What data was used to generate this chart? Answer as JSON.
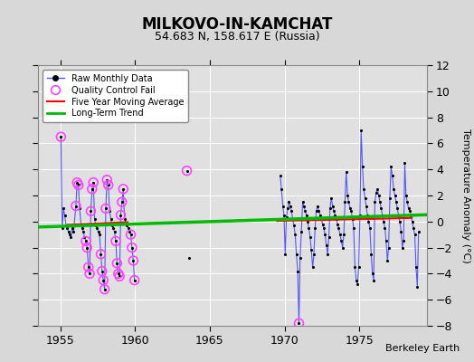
{
  "title": "MILKOVO-IN-KAMCHAT",
  "subtitle": "54.683 N, 158.617 E (Russia)",
  "ylabel": "Temperature Anomaly (°C)",
  "xlabel_credit": "Berkeley Earth",
  "xlim": [
    1953.5,
    1979.5
  ],
  "ylim": [
    -8,
    12
  ],
  "yticks": [
    -8,
    -6,
    -4,
    -2,
    0,
    2,
    4,
    6,
    8,
    10,
    12
  ],
  "xticks": [
    1955,
    1960,
    1965,
    1970,
    1975
  ],
  "bg_color": "#e0e0e0",
  "raw_color": "#5555ff",
  "dot_color": "#000000",
  "qc_color": "#ff44ff",
  "moving_avg_color": "#ff0000",
  "trend_color": "#00bb00",
  "segments": [
    [
      [
        1955.04,
        6.5
      ],
      [
        1955.12,
        -0.5
      ],
      [
        1955.21,
        1.0
      ],
      [
        1955.29,
        0.5
      ],
      [
        1955.38,
        -0.3
      ],
      [
        1955.46,
        -0.5
      ],
      [
        1955.54,
        -0.8
      ],
      [
        1955.62,
        -1.0
      ],
      [
        1955.71,
        -1.2
      ],
      [
        1955.79,
        -0.5
      ],
      [
        1955.88,
        -0.8
      ],
      [
        1956.04,
        1.2
      ],
      [
        1956.12,
        3.0
      ],
      [
        1956.21,
        2.8
      ],
      [
        1956.29,
        1.0
      ],
      [
        1956.38,
        -0.2
      ],
      [
        1956.46,
        -0.5
      ],
      [
        1956.54,
        -0.8
      ],
      [
        1956.62,
        -1.2
      ],
      [
        1956.71,
        -1.5
      ],
      [
        1956.79,
        -2.0
      ],
      [
        1956.88,
        -3.5
      ],
      [
        1956.96,
        -4.0
      ],
      [
        1957.04,
        0.8
      ],
      [
        1957.12,
        2.5
      ],
      [
        1957.21,
        3.0
      ],
      [
        1957.29,
        0.2
      ],
      [
        1957.38,
        -0.3
      ],
      [
        1957.46,
        -0.5
      ],
      [
        1957.54,
        -0.8
      ],
      [
        1957.62,
        -1.0
      ],
      [
        1957.71,
        -2.5
      ],
      [
        1957.79,
        -3.8
      ],
      [
        1957.88,
        -4.5
      ],
      [
        1957.96,
        -5.2
      ],
      [
        1958.04,
        1.0
      ],
      [
        1958.12,
        3.2
      ],
      [
        1958.21,
        2.8
      ],
      [
        1958.29,
        0.8
      ],
      [
        1958.38,
        0.2
      ],
      [
        1958.46,
        -0.3
      ],
      [
        1958.54,
        -0.5
      ],
      [
        1958.62,
        -0.8
      ],
      [
        1958.71,
        -1.5
      ],
      [
        1958.79,
        -3.2
      ],
      [
        1958.88,
        -4.0
      ],
      [
        1958.96,
        -4.2
      ],
      [
        1959.04,
        0.5
      ],
      [
        1959.12,
        1.5
      ],
      [
        1959.21,
        2.5
      ],
      [
        1959.29,
        0.2
      ],
      [
        1959.38,
        -0.1
      ],
      [
        1959.46,
        -0.3
      ],
      [
        1959.54,
        -0.5
      ],
      [
        1959.62,
        -0.8
      ],
      [
        1959.71,
        -1.0
      ],
      [
        1959.79,
        -2.0
      ],
      [
        1959.88,
        -3.0
      ],
      [
        1959.96,
        -4.5
      ]
    ],
    [
      [
        1963.46,
        3.9
      ]
    ],
    [
      [
        1963.58,
        -2.8
      ]
    ],
    [
      [
        1969.71,
        3.5
      ],
      [
        1969.79,
        2.5
      ],
      [
        1969.88,
        1.2
      ],
      [
        1969.96,
        0.5
      ],
      [
        1970.04,
        -2.5
      ],
      [
        1970.12,
        0.3
      ],
      [
        1970.21,
        1.0
      ],
      [
        1970.29,
        1.5
      ],
      [
        1970.38,
        1.2
      ],
      [
        1970.46,
        0.8
      ],
      [
        1970.54,
        0.2
      ],
      [
        1970.62,
        -0.3
      ],
      [
        1970.71,
        -1.0
      ],
      [
        1970.79,
        -2.5
      ],
      [
        1970.88,
        -3.8
      ],
      [
        1970.96,
        -7.8
      ],
      [
        1971.04,
        -2.8
      ],
      [
        1971.12,
        -0.8
      ],
      [
        1971.21,
        1.5
      ],
      [
        1971.29,
        1.2
      ],
      [
        1971.38,
        0.8
      ],
      [
        1971.46,
        0.5
      ],
      [
        1971.54,
        0.0
      ],
      [
        1971.62,
        -0.5
      ],
      [
        1971.71,
        -1.2
      ],
      [
        1971.79,
        -2.2
      ],
      [
        1971.88,
        -3.5
      ],
      [
        1971.96,
        -2.5
      ],
      [
        1972.04,
        -0.5
      ],
      [
        1972.12,
        0.8
      ],
      [
        1972.21,
        1.2
      ],
      [
        1972.29,
        0.8
      ],
      [
        1972.38,
        0.5
      ],
      [
        1972.46,
        0.2
      ],
      [
        1972.54,
        -0.2
      ],
      [
        1972.62,
        -0.5
      ],
      [
        1972.71,
        -1.0
      ],
      [
        1972.79,
        -1.8
      ],
      [
        1972.88,
        -2.5
      ],
      [
        1972.96,
        -1.2
      ],
      [
        1973.04,
        1.0
      ],
      [
        1973.12,
        1.8
      ],
      [
        1973.21,
        1.2
      ],
      [
        1973.29,
        0.8
      ],
      [
        1973.38,
        0.5
      ],
      [
        1973.46,
        0.2
      ],
      [
        1973.54,
        -0.2
      ],
      [
        1973.62,
        -0.5
      ],
      [
        1973.71,
        -1.0
      ],
      [
        1973.79,
        -1.5
      ],
      [
        1973.88,
        -2.0
      ],
      [
        1973.96,
        -1.0
      ],
      [
        1974.04,
        1.5
      ],
      [
        1974.12,
        3.8
      ],
      [
        1974.21,
        2.0
      ],
      [
        1974.29,
        1.5
      ],
      [
        1974.38,
        1.0
      ],
      [
        1974.46,
        0.8
      ],
      [
        1974.54,
        0.2
      ],
      [
        1974.62,
        -0.5
      ],
      [
        1974.71,
        -3.5
      ],
      [
        1974.79,
        -4.5
      ],
      [
        1974.88,
        -4.8
      ],
      [
        1974.96,
        -3.5
      ],
      [
        1975.04,
        0.5
      ],
      [
        1975.12,
        7.0
      ],
      [
        1975.21,
        4.2
      ],
      [
        1975.29,
        2.5
      ],
      [
        1975.38,
        1.8
      ],
      [
        1975.46,
        1.2
      ],
      [
        1975.54,
        0.5
      ],
      [
        1975.62,
        0.0
      ],
      [
        1975.71,
        -0.5
      ],
      [
        1975.79,
        -2.5
      ],
      [
        1975.88,
        -4.0
      ],
      [
        1975.96,
        -4.5
      ],
      [
        1976.04,
        1.5
      ],
      [
        1976.12,
        2.2
      ],
      [
        1976.21,
        2.5
      ],
      [
        1976.29,
        2.0
      ],
      [
        1976.38,
        1.5
      ],
      [
        1976.46,
        1.0
      ],
      [
        1976.54,
        0.5
      ],
      [
        1976.62,
        0.0
      ],
      [
        1976.71,
        -0.5
      ],
      [
        1976.79,
        -1.5
      ],
      [
        1976.88,
        -3.0
      ],
      [
        1976.96,
        -2.0
      ],
      [
        1977.04,
        1.8
      ],
      [
        1977.12,
        4.2
      ],
      [
        1977.21,
        3.5
      ],
      [
        1977.29,
        2.5
      ],
      [
        1977.38,
        2.0
      ],
      [
        1977.46,
        1.5
      ],
      [
        1977.54,
        1.0
      ],
      [
        1977.62,
        0.5
      ],
      [
        1977.71,
        0.0
      ],
      [
        1977.79,
        -0.8
      ],
      [
        1977.88,
        -2.0
      ],
      [
        1977.96,
        -1.5
      ],
      [
        1978.04,
        4.5
      ],
      [
        1978.12,
        2.0
      ],
      [
        1978.21,
        1.5
      ],
      [
        1978.29,
        1.0
      ],
      [
        1978.38,
        0.8
      ],
      [
        1978.46,
        0.5
      ],
      [
        1978.54,
        0.0
      ],
      [
        1978.62,
        -0.5
      ],
      [
        1978.71,
        -1.0
      ],
      [
        1978.79,
        -3.5
      ],
      [
        1978.88,
        -5.0
      ],
      [
        1978.96,
        -0.8
      ]
    ]
  ],
  "qc_fail_points": [
    [
      1955.04,
      6.5
    ],
    [
      1956.04,
      1.2
    ],
    [
      1956.12,
      3.0
    ],
    [
      1956.21,
      2.8
    ],
    [
      1956.71,
      -1.5
    ],
    [
      1956.79,
      -2.0
    ],
    [
      1956.88,
      -3.5
    ],
    [
      1956.96,
      -4.0
    ],
    [
      1957.04,
      0.8
    ],
    [
      1957.12,
      2.5
    ],
    [
      1957.21,
      3.0
    ],
    [
      1957.71,
      -2.5
    ],
    [
      1957.79,
      -3.8
    ],
    [
      1957.88,
      -4.5
    ],
    [
      1957.96,
      -5.2
    ],
    [
      1958.04,
      1.0
    ],
    [
      1958.12,
      3.2
    ],
    [
      1958.21,
      2.8
    ],
    [
      1958.71,
      -1.5
    ],
    [
      1958.79,
      -3.2
    ],
    [
      1958.88,
      -4.0
    ],
    [
      1958.96,
      -4.2
    ],
    [
      1959.04,
      0.5
    ],
    [
      1959.12,
      1.5
    ],
    [
      1959.21,
      2.5
    ],
    [
      1959.71,
      -1.0
    ],
    [
      1959.79,
      -2.0
    ],
    [
      1959.88,
      -3.0
    ],
    [
      1959.96,
      -4.5
    ],
    [
      1963.46,
      3.9
    ],
    [
      1970.96,
      -7.8
    ]
  ],
  "trend_line": [
    [
      1953.5,
      -0.42
    ],
    [
      1979.5,
      0.52
    ]
  ],
  "moving_avg_segments": [
    [
      [
        1955.5,
        -0.25
      ],
      [
        1956.5,
        -0.2
      ],
      [
        1957.5,
        -0.15
      ],
      [
        1958.5,
        -0.1
      ],
      [
        1959.5,
        -0.05
      ]
    ],
    [
      [
        1969.5,
        0.05
      ],
      [
        1970.5,
        0.08
      ],
      [
        1971.5,
        0.1
      ],
      [
        1972.5,
        0.12
      ],
      [
        1973.5,
        0.15
      ],
      [
        1974.5,
        0.18
      ],
      [
        1975.5,
        0.2
      ],
      [
        1976.5,
        0.22
      ],
      [
        1977.5,
        0.25
      ],
      [
        1978.5,
        0.28
      ]
    ]
  ]
}
